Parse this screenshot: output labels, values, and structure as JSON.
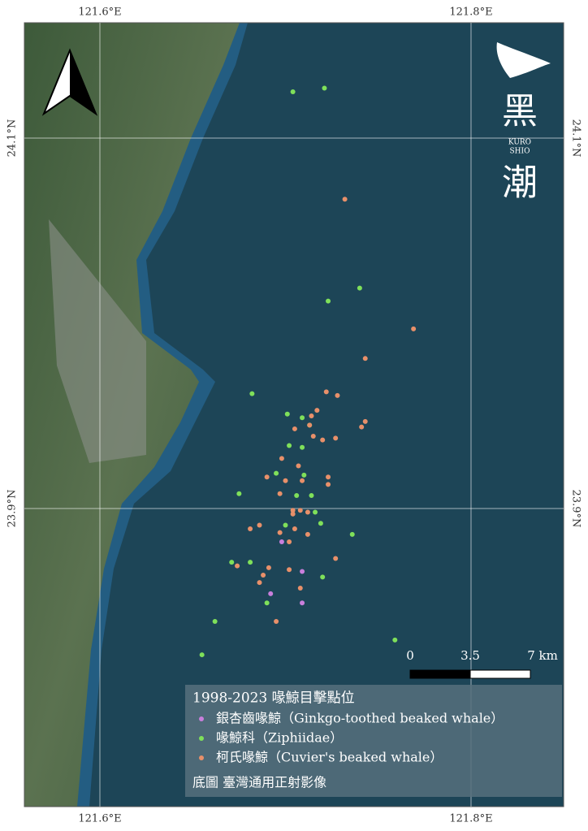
{
  "chart_data": {
    "type": "scatter",
    "legend_title": "1998-2023 喙鯨目擊點位",
    "note": "底圖 臺灣通用正射影像",
    "logo": [
      "黑",
      "KURO",
      "SHIO",
      "潮"
    ],
    "scale_labels": [
      "0",
      "3.5",
      "7 km"
    ],
    "xlim": [
      121.5593,
      121.8499
    ],
    "ylim": [
      23.739,
      24.1623
    ],
    "xticks": [
      {
        "value": 121.6,
        "label": "121.6°E"
      },
      {
        "value": 121.8,
        "label": "121.8°E"
      }
    ],
    "yticks": [
      {
        "value": 23.9,
        "label": "23.9°N"
      },
      {
        "value": 24.1,
        "label": "24.1°N"
      }
    ],
    "grid": true,
    "series": [
      {
        "name": "銀杏齒喙鯨（Ginkgo-toothed beaked whale）",
        "color": "#c97fdc",
        "x": [
          121.698,
          121.709,
          121.692,
          121.709
        ],
        "values": [
          23.882,
          23.866,
          23.854,
          23.849
        ]
      },
      {
        "name": "喙鯨科（Ziphiidae）",
        "color": "#7fe05a",
        "x": [
          121.704,
          121.721,
          121.74,
          121.723,
          121.682,
          121.701,
          121.709,
          121.713,
          121.702,
          121.709,
          121.695,
          121.71,
          121.675,
          121.706,
          121.714,
          121.716,
          121.719,
          121.7,
          121.736,
          121.671,
          121.681,
          121.72,
          121.69,
          121.662,
          121.655,
          121.759
        ],
        "values": [
          24.125,
          24.127,
          24.019,
          24.012,
          23.962,
          23.951,
          23.949,
          23.945,
          23.934,
          23.933,
          23.919,
          23.918,
          23.908,
          23.907,
          23.907,
          23.898,
          23.892,
          23.891,
          23.886,
          23.871,
          23.871,
          23.863,
          23.849,
          23.839,
          23.821,
          23.829
        ]
      },
      {
        "name": "柯氏喙鯨（Cuvier's beaked whale）",
        "color": "#e8906a",
        "x": [
          121.732,
          121.769,
          121.743,
          121.722,
          121.728,
          121.717,
          121.714,
          121.713,
          121.705,
          121.715,
          121.72,
          121.727,
          121.741,
          121.743,
          121.698,
          121.707,
          121.723,
          121.69,
          121.7,
          121.709,
          121.723,
          121.697,
          121.704,
          121.708,
          121.704,
          121.712,
          121.686,
          121.681,
          121.705,
          121.697,
          121.712,
          121.702,
          121.727,
          121.674,
          121.691,
          121.702,
          121.688,
          121.686,
          121.708,
          121.695
        ],
        "values": [
          24.067,
          23.997,
          23.981,
          23.963,
          23.961,
          23.953,
          23.95,
          23.945,
          23.943,
          23.939,
          23.937,
          23.938,
          23.944,
          23.947,
          23.927,
          23.923,
          23.917,
          23.917,
          23.915,
          23.915,
          23.913,
          23.908,
          23.899,
          23.899,
          23.897,
          23.898,
          23.891,
          23.889,
          23.889,
          23.887,
          23.886,
          23.882,
          23.873,
          23.869,
          23.868,
          23.867,
          23.864,
          23.86,
          23.857,
          23.839
        ]
      }
    ]
  }
}
